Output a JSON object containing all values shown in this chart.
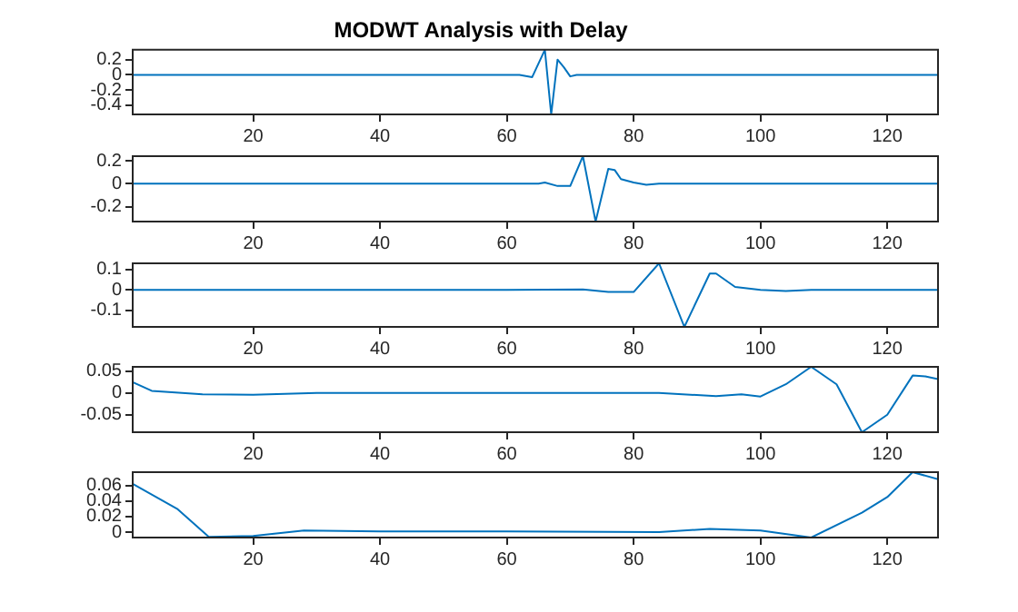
{
  "chart_data": [
    {
      "type": "line",
      "title": "MODWT Analysis with Delay",
      "color": "#0072bd",
      "x": [
        1,
        30,
        62,
        64,
        66,
        67,
        68,
        69,
        70,
        71,
        72,
        100,
        128
      ],
      "values": [
        0,
        0,
        0,
        -0.03,
        0.33,
        -0.52,
        0.2,
        0.1,
        -0.02,
        0,
        0,
        0,
        0
      ],
      "xlim": [
        1,
        128
      ],
      "xticks": [
        20,
        40,
        60,
        80,
        100,
        120
      ],
      "ylim": [
        -0.52,
        0.33
      ],
      "yticks": [
        -0.4,
        -0.2,
        0,
        0.2
      ],
      "grid": false,
      "legend": false
    },
    {
      "type": "line",
      "color": "#0072bd",
      "x": [
        1,
        30,
        65,
        66,
        68,
        70,
        72,
        74,
        76,
        77,
        78,
        80,
        82,
        84,
        100,
        128
      ],
      "values": [
        0,
        0,
        0,
        0.01,
        -0.02,
        -0.02,
        0.24,
        -0.33,
        0.13,
        0.12,
        0.04,
        0.01,
        -0.01,
        0,
        0,
        0
      ],
      "xlim": [
        1,
        128
      ],
      "xticks": [
        20,
        40,
        60,
        80,
        100,
        120
      ],
      "ylim": [
        -0.33,
        0.24
      ],
      "yticks": [
        -0.2,
        0,
        0.2
      ],
      "grid": false,
      "legend": false
    },
    {
      "type": "line",
      "color": "#0072bd",
      "x": [
        1,
        30,
        60,
        72,
        76,
        80,
        84,
        88,
        92,
        93,
        96,
        100,
        104,
        108,
        128
      ],
      "values": [
        0,
        0,
        0,
        0.003,
        -0.01,
        -0.01,
        0.13,
        -0.18,
        0.08,
        0.08,
        0.015,
        0,
        -0.005,
        0,
        0
      ],
      "xlim": [
        1,
        128
      ],
      "xticks": [
        20,
        40,
        60,
        80,
        100,
        120
      ],
      "ylim": [
        -0.18,
        0.13
      ],
      "yticks": [
        -0.1,
        0,
        0.1
      ],
      "grid": false,
      "legend": false
    },
    {
      "type": "line",
      "color": "#0072bd",
      "x": [
        1,
        4,
        12,
        20,
        30,
        60,
        84,
        93,
        97,
        100,
        104,
        108,
        112,
        116,
        120,
        124,
        126,
        128
      ],
      "values": [
        0.025,
        0.005,
        -0.003,
        -0.004,
        0,
        0,
        0,
        -0.007,
        -0.003,
        -0.008,
        0.02,
        0.06,
        0.02,
        -0.09,
        -0.05,
        0.04,
        0.038,
        0.032
      ],
      "xlim": [
        1,
        128
      ],
      "xticks": [
        20,
        40,
        60,
        80,
        100,
        120
      ],
      "ylim": [
        -0.09,
        0.06
      ],
      "yticks": [
        -0.05,
        0,
        0.05
      ],
      "grid": false,
      "legend": false
    },
    {
      "type": "line",
      "color": "#0072bd",
      "x": [
        1,
        8,
        13,
        20,
        28,
        40,
        60,
        84,
        92,
        100,
        108,
        116,
        120,
        124,
        128
      ],
      "values": [
        0.062,
        0.03,
        -0.006,
        -0.005,
        0.002,
        0.001,
        0.001,
        0,
        0.004,
        0.002,
        -0.007,
        0.025,
        0.045,
        0.077,
        0.068
      ],
      "xlim": [
        1,
        128
      ],
      "xticks": [
        20,
        40,
        60,
        80,
        100,
        120
      ],
      "ylim": [
        -0.007,
        0.077
      ],
      "yticks": [
        0,
        0.02,
        0.04,
        0.06
      ],
      "grid": false,
      "legend": false
    }
  ]
}
